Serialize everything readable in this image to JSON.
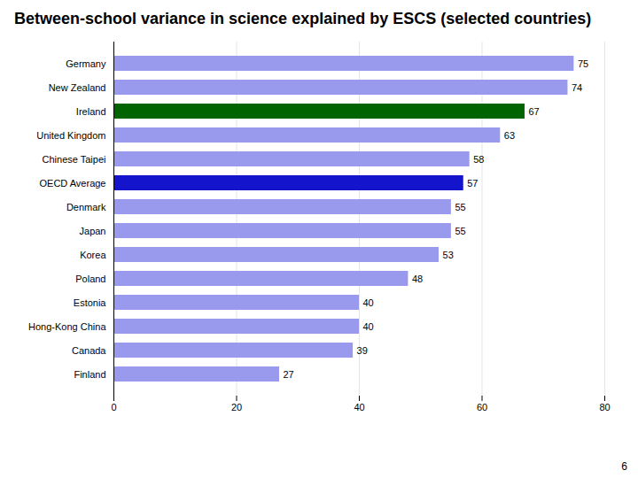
{
  "chart_data": {
    "type": "bar",
    "orientation": "horizontal",
    "title": "Between-school variance in science explained by ESCS (selected countries)",
    "categories": [
      "Finland",
      "Canada",
      "Hong-Kong China",
      "Estonia",
      "Poland",
      "Korea",
      "Japan",
      "Denmark",
      "OECD Average",
      "Chinese Taipei",
      "United Kingdom",
      "Ireland",
      "New Zealand",
      "Germany"
    ],
    "values": [
      27,
      39,
      40,
      40,
      48,
      53,
      55,
      55,
      57,
      58,
      63,
      67,
      74,
      75
    ],
    "colors": [
      "#9999ee",
      "#9999ee",
      "#9999ee",
      "#9999ee",
      "#9999ee",
      "#9999ee",
      "#9999ee",
      "#9999ee",
      "#1414cc",
      "#9999ee",
      "#9999ee",
      "#006400",
      "#9999ee",
      "#9999ee"
    ],
    "xlim": [
      0,
      80
    ],
    "xticks": [
      0,
      20,
      40,
      60,
      80
    ],
    "grid": true,
    "data_labels": true,
    "annotations": [
      "6"
    ]
  }
}
